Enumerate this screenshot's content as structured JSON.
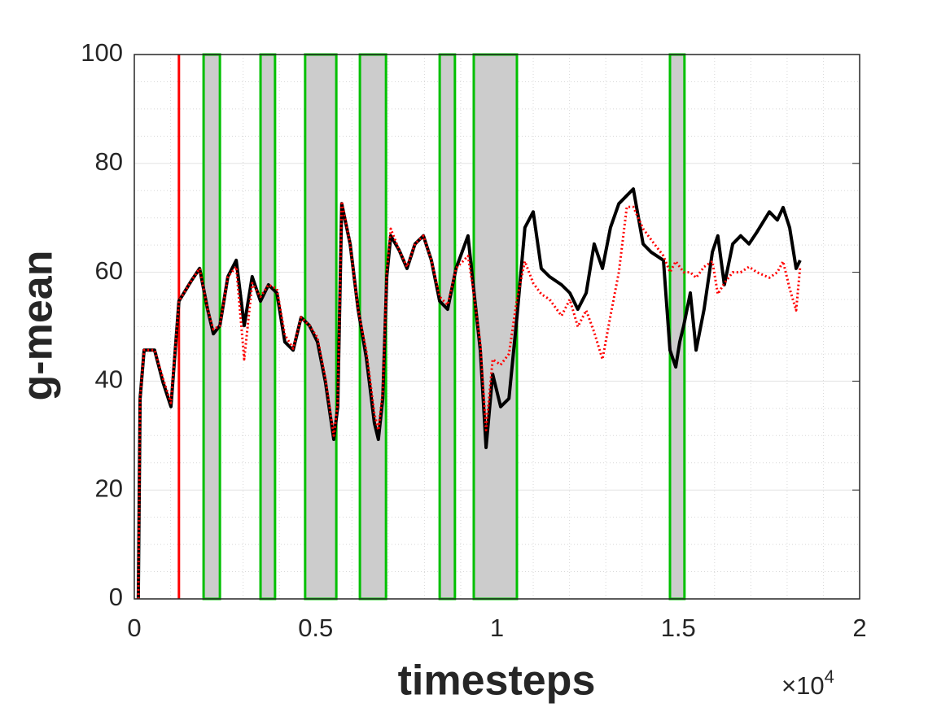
{
  "chart_data": {
    "type": "line",
    "xlabel": "timesteps",
    "ylabel": "g-mean",
    "x_multiplier": {
      "base": "×10",
      "exponent": "4"
    },
    "xlim": [
      0,
      2
    ],
    "ylim": [
      0,
      100
    ],
    "xticks": [
      0,
      0.5,
      1,
      1.5,
      2
    ],
    "yticks": [
      0,
      20,
      40,
      60,
      80,
      100
    ],
    "grid": true,
    "minor_grid": true,
    "shaded_regions": [
      [
        0.191,
        0.236
      ],
      [
        0.348,
        0.388
      ],
      [
        0.471,
        0.557
      ],
      [
        0.622,
        0.694
      ],
      [
        0.842,
        0.884
      ],
      [
        0.936,
        1.055
      ],
      [
        1.477,
        1.517
      ]
    ],
    "shade_color": "#cccccc",
    "shade_edge_color": "#00c000",
    "vlines": [
      {
        "x": 0.123,
        "color": "#ff0000"
      }
    ],
    "x": [
      0.011,
      0.016,
      0.027,
      0.056,
      0.079,
      0.101,
      0.123,
      0.157,
      0.18,
      0.202,
      0.218,
      0.236,
      0.258,
      0.281,
      0.303,
      0.325,
      0.348,
      0.37,
      0.393,
      0.415,
      0.438,
      0.46,
      0.483,
      0.505,
      0.527,
      0.55,
      0.561,
      0.572,
      0.595,
      0.617,
      0.64,
      0.662,
      0.673,
      0.685,
      0.696,
      0.707,
      0.73,
      0.752,
      0.774,
      0.797,
      0.819,
      0.842,
      0.864,
      0.887,
      0.92,
      0.932,
      0.954,
      0.97,
      0.988,
      1.01,
      1.033,
      1.055,
      1.077,
      1.1,
      1.122,
      1.145,
      1.178,
      1.201,
      1.223,
      1.246,
      1.268,
      1.291,
      1.313,
      1.336,
      1.358,
      1.376,
      1.403,
      1.425,
      1.459,
      1.477,
      1.493,
      1.504,
      1.515,
      1.533,
      1.549,
      1.571,
      1.594,
      1.609,
      1.627,
      1.65,
      1.672,
      1.695,
      1.717,
      1.751,
      1.773,
      1.789,
      1.807,
      1.825,
      1.836
    ],
    "series": [
      {
        "name": "black",
        "color": "#000000",
        "values": [
          0,
          36.8,
          45.7,
          45.7,
          39.8,
          35.3,
          54.7,
          58.4,
          60.7,
          53.2,
          48.7,
          50.2,
          59.2,
          62.2,
          50.2,
          59.2,
          54.7,
          57.7,
          56.2,
          47.2,
          45.7,
          51.7,
          50.2,
          47.2,
          39.8,
          29.3,
          35.3,
          72.6,
          65.2,
          53.2,
          44.2,
          32.3,
          29.3,
          36.8,
          59.2,
          66.7,
          64.1,
          60.7,
          65.2,
          66.7,
          62.2,
          54.7,
          53.2,
          60.7,
          66.7,
          59.2,
          45.7,
          27.8,
          41.3,
          35.3,
          36.8,
          51.7,
          68.2,
          71.1,
          60.7,
          59.2,
          57.7,
          56.2,
          53.2,
          56.2,
          65.2,
          60.7,
          68.2,
          72.6,
          74.1,
          75.3,
          65.2,
          63.7,
          62.2,
          45.7,
          42.6,
          47.2,
          50.2,
          56.2,
          45.7,
          53.2,
          63.7,
          66.7,
          57.7,
          65.2,
          66.7,
          65.2,
          67.4,
          71.1,
          69.6,
          71.9,
          68.2,
          60.7,
          62.2
        ]
      },
      {
        "name": "red",
        "color": "#ff0000",
        "values": [
          0,
          36.8,
          45.7,
          45.7,
          40.5,
          36,
          54.7,
          58.4,
          60.7,
          53.2,
          49.5,
          50.2,
          59.2,
          61,
          44,
          58,
          55.5,
          57.7,
          57,
          48.5,
          46,
          51.7,
          50.2,
          48,
          40.5,
          30,
          36,
          73,
          65.2,
          53.2,
          45.5,
          34,
          31,
          38,
          60,
          68,
          64.1,
          61,
          65.2,
          66.7,
          62.2,
          55.5,
          54,
          60.7,
          63,
          58,
          47,
          31,
          44,
          43,
          45,
          55,
          62,
          58,
          56,
          55,
          52,
          55,
          50,
          53,
          49,
          44,
          52,
          60,
          72,
          72,
          68,
          66,
          63,
          60,
          62,
          61,
          60,
          60,
          59,
          61,
          62,
          56,
          58,
          60,
          60,
          61,
          60,
          59,
          60,
          62,
          57,
          53,
          61
        ]
      }
    ]
  }
}
